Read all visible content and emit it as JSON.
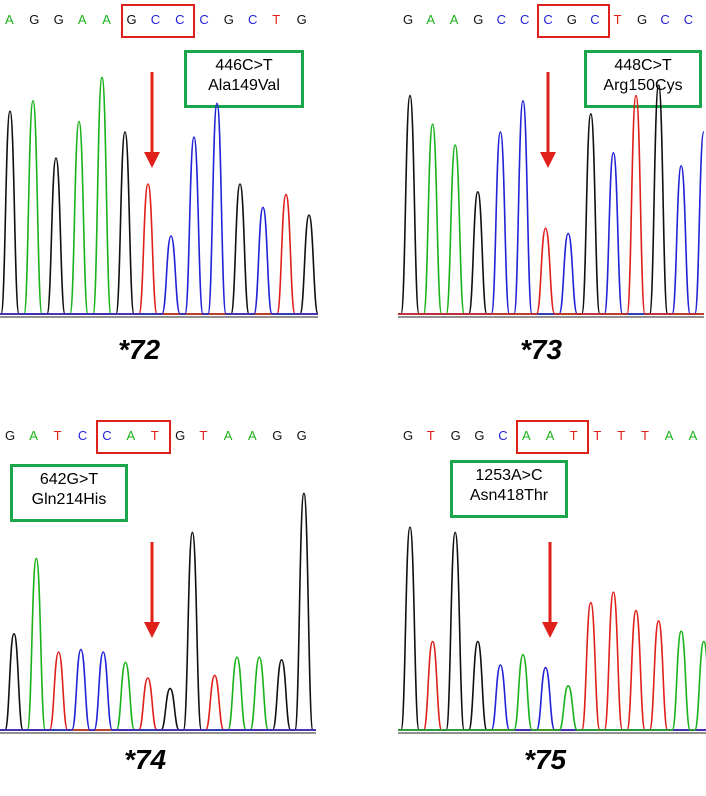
{
  "colors": {
    "A": "#1ab21a",
    "C": "#2222d6",
    "G": "#111111",
    "T": "#e0201b",
    "box": "#e0201b",
    "mut": "#1aa64a",
    "arrow": "#e0201b"
  },
  "panels": [
    {
      "sequence": [
        "A",
        "G",
        "G",
        "A",
        "A",
        "G",
        "C",
        "C",
        "C",
        "G",
        "C",
        "T",
        "G"
      ],
      "codon_start": 5,
      "mutation": {
        "cdna": "446C>T",
        "protein": "Ala149Val"
      },
      "allele": "*72"
    },
    {
      "sequence": [
        "G",
        "A",
        "A",
        "G",
        "C",
        "C",
        "C",
        "G",
        "C",
        "T",
        "G",
        "C",
        "C"
      ],
      "codon_start": 6,
      "mutation": {
        "cdna": "448C>T",
        "protein": "Arg150Cys"
      },
      "allele": "*73"
    },
    {
      "sequence": [
        "G",
        "A",
        "T",
        "C",
        "C",
        "A",
        "T",
        "G",
        "T",
        "A",
        "A",
        "G",
        "G"
      ],
      "codon_start": 4,
      "mutation": {
        "cdna": "642G>T",
        "protein": "Gln214His"
      },
      "allele": "*74"
    },
    {
      "sequence": [
        "G",
        "T",
        "G",
        "G",
        "C",
        "A",
        "A",
        "T",
        "T",
        "T",
        "T",
        "A",
        "A"
      ],
      "codon_start": 5,
      "mutation": {
        "cdna": "1253A>C",
        "protein": "Asn418Thr"
      },
      "allele": "*75"
    }
  ],
  "peaks": [
    [
      {
        "b": "G",
        "h": 0.78
      },
      {
        "b": "A",
        "h": 0.82
      },
      {
        "b": "G",
        "h": 0.6
      },
      {
        "b": "A",
        "h": 0.74
      },
      {
        "b": "A",
        "h": 0.91
      },
      {
        "b": "G",
        "h": 0.7
      },
      {
        "b": "T",
        "h": 0.5
      },
      {
        "b": "C",
        "h": 0.3
      },
      {
        "b": "C",
        "h": 0.68
      },
      {
        "b": "C",
        "h": 0.81
      },
      {
        "b": "G",
        "h": 0.5
      },
      {
        "b": "C",
        "h": 0.41
      },
      {
        "b": "T",
        "h": 0.46
      },
      {
        "b": "G",
        "h": 0.38
      }
    ],
    [
      {
        "b": "G",
        "h": 0.84
      },
      {
        "b": "A",
        "h": 0.73
      },
      {
        "b": "A",
        "h": 0.65
      },
      {
        "b": "G",
        "h": 0.47
      },
      {
        "b": "C",
        "h": 0.7
      },
      {
        "b": "C",
        "h": 0.82
      },
      {
        "b": "T",
        "h": 0.33
      },
      {
        "b": "C",
        "h": 0.31
      },
      {
        "b": "G",
        "h": 0.77
      },
      {
        "b": "C",
        "h": 0.62
      },
      {
        "b": "T",
        "h": 0.84
      },
      {
        "b": "G",
        "h": 0.88
      },
      {
        "b": "C",
        "h": 0.57
      },
      {
        "b": "C",
        "h": 0.7
      }
    ],
    [
      {
        "b": "G",
        "h": 0.37
      },
      {
        "b": "A",
        "h": 0.66
      },
      {
        "b": "T",
        "h": 0.3
      },
      {
        "b": "C",
        "h": 0.31
      },
      {
        "b": "C",
        "h": 0.3
      },
      {
        "b": "A",
        "h": 0.26
      },
      {
        "b": "T",
        "h": 0.2
      },
      {
        "b": "G",
        "h": 0.16
      },
      {
        "b": "G",
        "h": 0.76
      },
      {
        "b": "T",
        "h": 0.21
      },
      {
        "b": "A",
        "h": 0.28
      },
      {
        "b": "A",
        "h": 0.28
      },
      {
        "b": "G",
        "h": 0.27
      },
      {
        "b": "G",
        "h": 0.91
      }
    ],
    [
      {
        "b": "G",
        "h": 0.78
      },
      {
        "b": "T",
        "h": 0.34
      },
      {
        "b": "G",
        "h": 0.76
      },
      {
        "b": "G",
        "h": 0.34
      },
      {
        "b": "C",
        "h": 0.25
      },
      {
        "b": "A",
        "h": 0.29
      },
      {
        "b": "C",
        "h": 0.24
      },
      {
        "b": "A",
        "h": 0.17
      },
      {
        "b": "T",
        "h": 0.49
      },
      {
        "b": "T",
        "h": 0.53
      },
      {
        "b": "T",
        "h": 0.46
      },
      {
        "b": "T",
        "h": 0.42
      },
      {
        "b": "A",
        "h": 0.38
      },
      {
        "b": "A",
        "h": 0.34
      }
    ]
  ]
}
